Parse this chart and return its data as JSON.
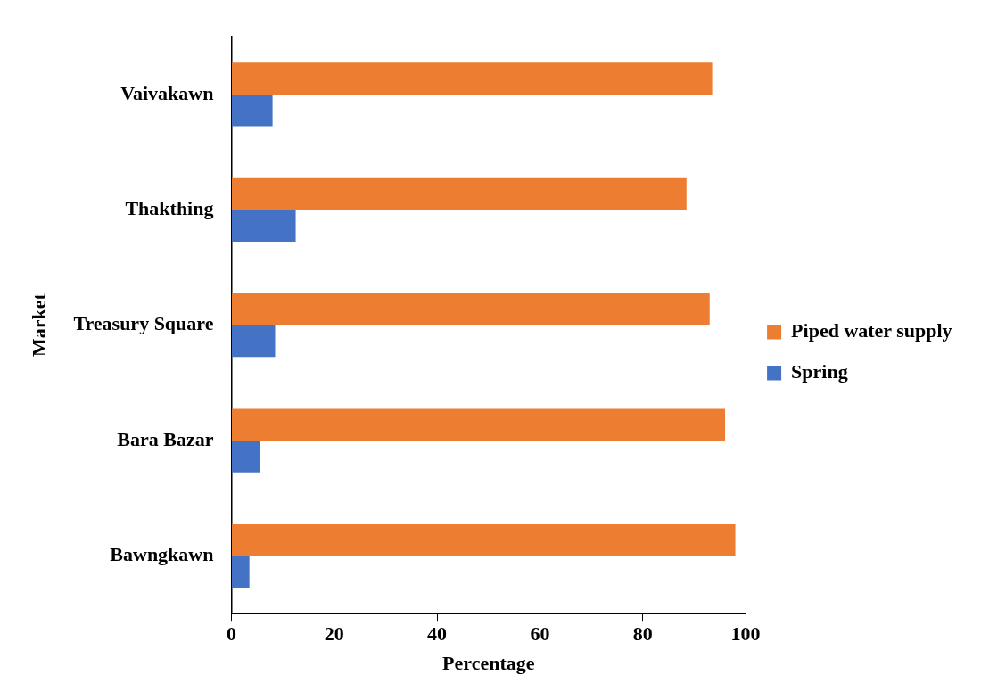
{
  "chart_data": {
    "type": "bar",
    "orientation": "horizontal",
    "xlabel": "Percentage",
    "ylabel": "Market",
    "categories": [
      "Vaivakawn",
      "Thakthing",
      "Treasury Square",
      "Bara Bazar",
      "Bawngkawn"
    ],
    "series": [
      {
        "name": "Piped water supply",
        "color": "#ed7d31",
        "values": [
          93.5,
          88.5,
          93,
          96,
          98
        ]
      },
      {
        "name": "Spring",
        "color": "#4472c4",
        "values": [
          8,
          12.5,
          8.5,
          5.5,
          3.5
        ]
      }
    ],
    "xlim": [
      0,
      100
    ],
    "xticks": [
      0,
      20,
      40,
      60,
      80,
      100
    ],
    "grid": false,
    "legend": "right"
  }
}
